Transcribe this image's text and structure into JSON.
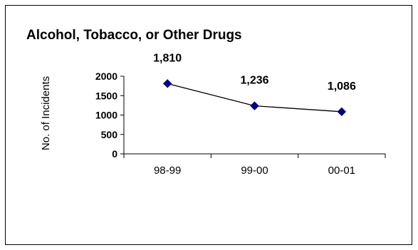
{
  "chart_data": {
    "type": "line",
    "title": "Alcohol, Tobacco, or Other Drugs",
    "xlabel": "",
    "ylabel": "No. of Incidents",
    "categories": [
      "98-99",
      "99-00",
      "00-01"
    ],
    "series": [
      {
        "values": [
          1810,
          1236,
          1086
        ]
      }
    ],
    "data_labels": [
      "1,810",
      "1,236",
      "1,086"
    ],
    "y_ticks": [
      "0",
      "500",
      "1000",
      "1500",
      "2000"
    ],
    "ylim": [
      0,
      2000
    ],
    "grid": false,
    "legend": "none",
    "colors": {
      "line": "#000000",
      "marker": "#000080"
    }
  }
}
